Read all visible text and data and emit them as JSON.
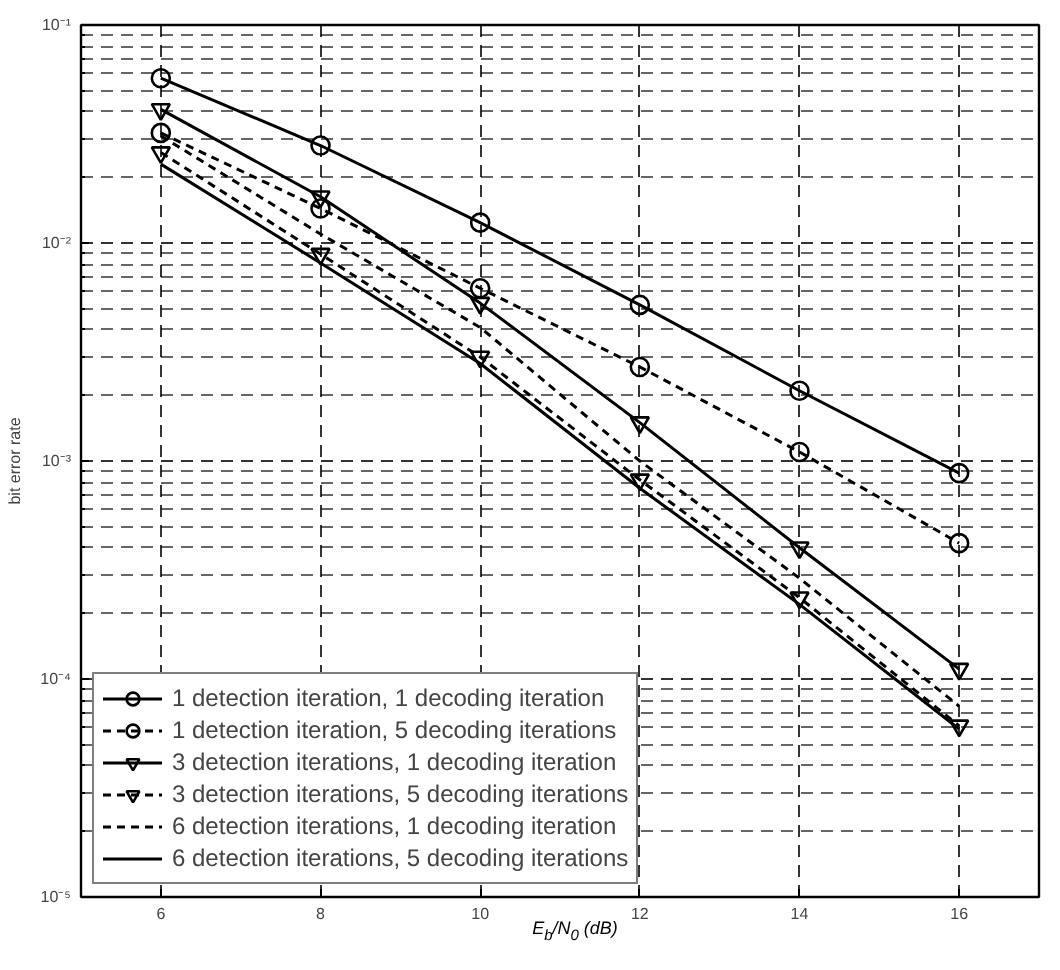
{
  "chart_data": {
    "type": "line",
    "xlabel": "E$_{b}$/N$_{0}$ (dB)",
    "ylabel": "bit error rate",
    "log": "y",
    "grid": true,
    "legend": "bottom left",
    "x": [
      6,
      8,
      10,
      12,
      14,
      16
    ],
    "xlim": [
      5,
      17
    ],
    "xticks": [
      6,
      8,
      10,
      12,
      14,
      16
    ],
    "ylim": [
      1e-05,
      0.1
    ],
    "yticks": [
      {
        "value": 1e-05,
        "label": "10⁻⁵"
      },
      {
        "value": 0.0001,
        "label": "10⁻⁴"
      },
      {
        "value": 0.001,
        "label": "10⁻³"
      },
      {
        "value": 0.01,
        "label": "10⁻²"
      },
      {
        "value": 0.1,
        "label": "10⁻¹"
      }
    ],
    "series": [
      {
        "name": "1 detection iteration, 1 decoding iteration",
        "color": "#000000",
        "marker": "circle",
        "line_style": "solid",
        "values": [
          0.057,
          0.028,
          0.0124,
          0.0052,
          0.0021,
          0.00088
        ]
      },
      {
        "name": "1 detection iteration, 5 decoding iterations",
        "color": "#000000",
        "marker": "circle",
        "line_style": "dashed",
        "values": [
          0.032,
          0.0144,
          0.0062,
          0.0027,
          0.0011,
          0.00042
        ]
      },
      {
        "name": "3 detection iterations, 1 decoding iteration",
        "color": "#000000",
        "marker": "triangle",
        "line_style": "solid",
        "values": [
          0.041,
          0.0163,
          0.0053,
          0.0015,
          0.0004,
          0.000111
        ]
      },
      {
        "name": "3 detection iterations, 5 decoding iterations",
        "color": "#000000",
        "marker": "triangle",
        "line_style": "dashed",
        "values": [
          0.026,
          0.0089,
          0.003,
          0.00082,
          0.000236,
          6.1e-05
        ]
      },
      {
        "name": "6 detection iterations, 1 decoding iteration",
        "color": "#000000",
        "marker": "none",
        "line_style": "dashed",
        "values": [
          0.031,
          0.011,
          0.0041,
          0.001,
          0.00029,
          7.5e-05
        ]
      },
      {
        "name": "6 detection iterations, 5 decoding iterations",
        "color": "#000000",
        "marker": "none",
        "line_style": "solid",
        "values": [
          0.023,
          0.0081,
          0.0028,
          0.00075,
          0.00022,
          5.9e-05
        ]
      }
    ]
  }
}
